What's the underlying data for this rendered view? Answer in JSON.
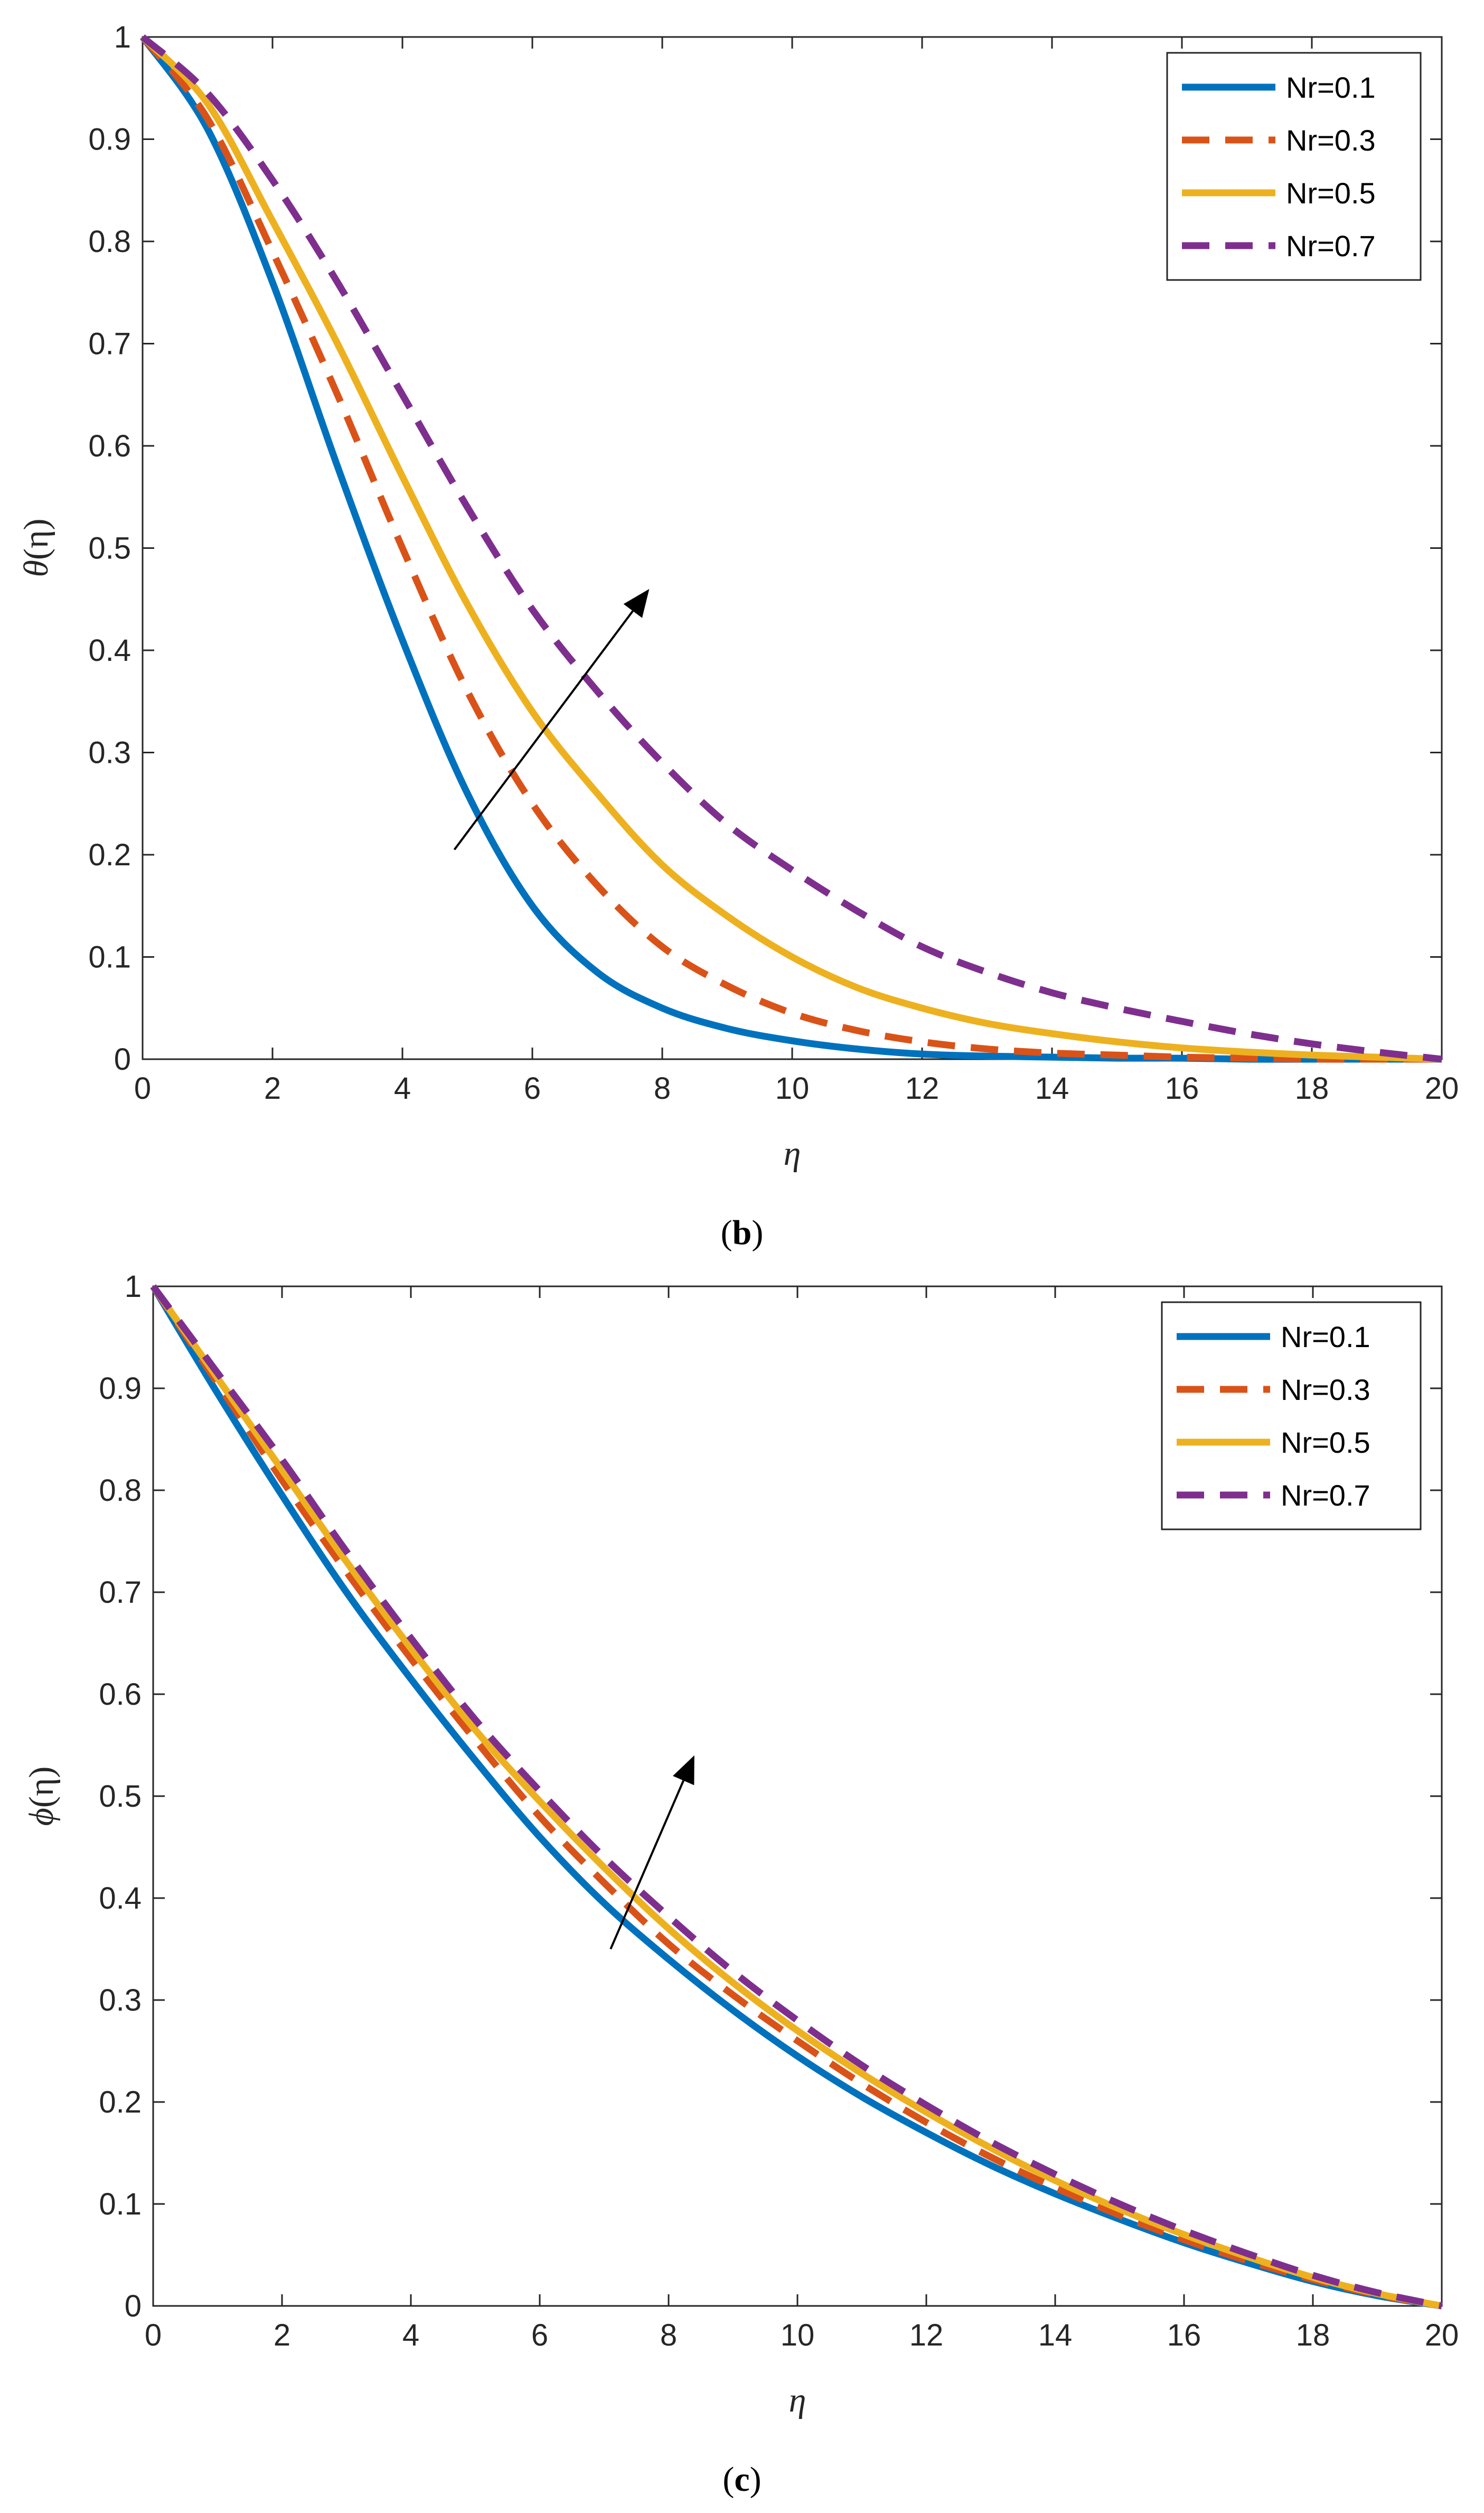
{
  "chart_data": [
    {
      "type": "line",
      "caption_open": "(",
      "caption_letter": "b",
      "caption_close": ")",
      "xlabel": "η",
      "ylabel_func": "θ",
      "ylabel_arg": "(η)",
      "xlim": [
        0,
        20
      ],
      "ylim": [
        0,
        1
      ],
      "xticks": [
        0,
        2,
        4,
        6,
        8,
        10,
        12,
        14,
        16,
        18,
        20
      ],
      "yticks": [
        0,
        0.1,
        0.2,
        0.3,
        0.4,
        0.5,
        0.6,
        0.7,
        0.8,
        0.9,
        1
      ],
      "legend_position": "top-right",
      "trend_arrow": {
        "from": [
          4.8,
          0.205
        ],
        "to": [
          7.8,
          0.46
        ]
      },
      "x": [
        0,
        1,
        2,
        3,
        4,
        5,
        6,
        7,
        8,
        9,
        10,
        11,
        12,
        13,
        14,
        15,
        16,
        17,
        18,
        19,
        20
      ],
      "series": [
        {
          "name": "Nr=0.1",
          "color": "#0072BD",
          "dash": "solid",
          "values": [
            1.0,
            0.91,
            0.76,
            0.58,
            0.41,
            0.26,
            0.15,
            0.085,
            0.05,
            0.03,
            0.018,
            0.01,
            0.005,
            0.003,
            0.002,
            0.001,
            0.001,
            0.0,
            0.0,
            0.0,
            0.0
          ]
        },
        {
          "name": "Nr=0.3",
          "color": "#D95319",
          "dash": "dashed",
          "values": [
            1.0,
            0.92,
            0.79,
            0.65,
            0.5,
            0.36,
            0.25,
            0.17,
            0.11,
            0.072,
            0.045,
            0.028,
            0.017,
            0.01,
            0.006,
            0.004,
            0.002,
            0.001,
            0.0,
            0.0,
            0.0
          ]
        },
        {
          "name": "Nr=0.5",
          "color": "#EDB120",
          "dash": "solid",
          "values": [
            1.0,
            0.935,
            0.82,
            0.7,
            0.57,
            0.445,
            0.34,
            0.26,
            0.19,
            0.14,
            0.1,
            0.07,
            0.05,
            0.035,
            0.025,
            0.017,
            0.011,
            0.007,
            0.004,
            0.002,
            0.0
          ]
        },
        {
          "name": "Nr=0.7",
          "color": "#7E2F8E",
          "dash": "dashed",
          "values": [
            1.0,
            0.945,
            0.86,
            0.76,
            0.65,
            0.54,
            0.44,
            0.36,
            0.29,
            0.23,
            0.185,
            0.145,
            0.11,
            0.085,
            0.065,
            0.05,
            0.037,
            0.025,
            0.015,
            0.007,
            0.0
          ]
        }
      ]
    },
    {
      "type": "line",
      "caption_open": "(",
      "caption_letter": "c",
      "caption_close": ")",
      "xlabel": "η",
      "ylabel_func": "ϕ",
      "ylabel_arg": "(η)",
      "xlim": [
        0,
        20
      ],
      "ylim": [
        0,
        1
      ],
      "xticks": [
        0,
        2,
        4,
        6,
        8,
        10,
        12,
        14,
        16,
        18,
        20
      ],
      "yticks": [
        0,
        0.1,
        0.2,
        0.3,
        0.4,
        0.5,
        0.6,
        0.7,
        0.8,
        0.9,
        1
      ],
      "legend_position": "top-right",
      "trend_arrow": {
        "from": [
          7.1,
          0.35
        ],
        "to": [
          8.4,
          0.54
        ]
      },
      "x": [
        0,
        1,
        2,
        3,
        4,
        5,
        6,
        7,
        8,
        9,
        10,
        11,
        12,
        13,
        14,
        15,
        16,
        17,
        18,
        19,
        20
      ],
      "series": [
        {
          "name": "Nr=0.1",
          "color": "#0072BD",
          "dash": "solid",
          "values": [
            1.0,
            0.895,
            0.795,
            0.7,
            0.615,
            0.535,
            0.46,
            0.395,
            0.34,
            0.29,
            0.245,
            0.205,
            0.17,
            0.138,
            0.11,
            0.085,
            0.062,
            0.042,
            0.024,
            0.01,
            0.0
          ]
        },
        {
          "name": "Nr=0.3",
          "color": "#D95319",
          "dash": "dashed",
          "values": [
            1.0,
            0.905,
            0.81,
            0.72,
            0.635,
            0.555,
            0.48,
            0.415,
            0.355,
            0.305,
            0.26,
            0.218,
            0.18,
            0.146,
            0.116,
            0.089,
            0.065,
            0.044,
            0.026,
            0.011,
            0.0
          ]
        },
        {
          "name": "Nr=0.5",
          "color": "#EDB120",
          "dash": "solid",
          "values": [
            1.0,
            0.91,
            0.82,
            0.73,
            0.645,
            0.565,
            0.495,
            0.43,
            0.37,
            0.317,
            0.27,
            0.228,
            0.19,
            0.155,
            0.123,
            0.095,
            0.07,
            0.048,
            0.028,
            0.012,
            0.0
          ]
        },
        {
          "name": "Nr=0.7",
          "color": "#7E2F8E",
          "dash": "dashed",
          "values": [
            1.0,
            0.915,
            0.83,
            0.74,
            0.655,
            0.575,
            0.505,
            0.44,
            0.382,
            0.328,
            0.28,
            0.236,
            0.197,
            0.161,
            0.129,
            0.1,
            0.074,
            0.051,
            0.03,
            0.013,
            0.0
          ]
        }
      ]
    }
  ]
}
